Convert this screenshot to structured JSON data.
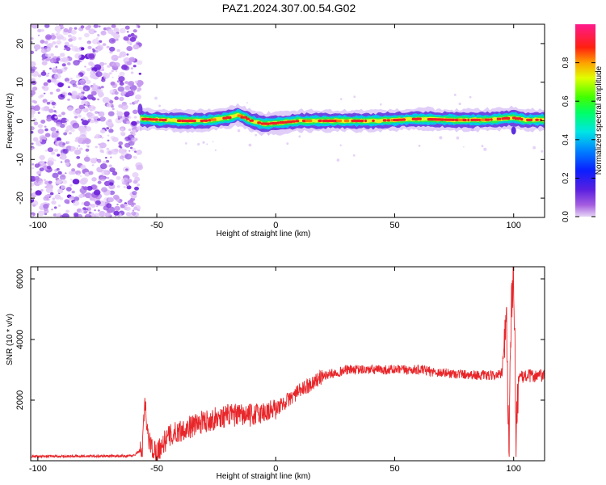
{
  "title": "PAZ1.2024.307.00.54.G02",
  "colors": {
    "snr_line": "#e8262a",
    "scatter_noise": "#8a2be2",
    "axis": "#000000"
  },
  "chart_data": [
    {
      "type": "heatmap",
      "title": "PAZ1.2024.307.00.54.G02",
      "xlabel": "Height of straight line (km)",
      "ylabel": "Frequency (Hz)",
      "xlim": [
        -103,
        113
      ],
      "ylim": [
        -25,
        25
      ],
      "xticks": [
        -100,
        -50,
        0,
        50,
        100
      ],
      "yticks": [
        -20,
        -10,
        0,
        10,
        20
      ],
      "colorbar": {
        "label": "Normalized spectral amplitude",
        "range": [
          0,
          1
        ],
        "ticks": [
          "0.0",
          "0.2",
          "0.4",
          "0.6",
          "0.8"
        ],
        "tick_values": [
          0,
          0.2,
          0.4,
          0.6,
          0.8
        ],
        "colormap": "rainbow (purple-blue-cyan-green-yellow-red-magenta)"
      },
      "noise_region_km": [
        -103,
        -57
      ],
      "signal_centerline": {
        "x": [
          -57,
          -50,
          -40,
          -30,
          -20,
          -16,
          -10,
          -5,
          0,
          5,
          10,
          20,
          30,
          40,
          50,
          60,
          70,
          80,
          90,
          100,
          105,
          113
        ],
        "freq": [
          0.5,
          0.3,
          0.0,
          0.0,
          0.8,
          1.6,
          0.0,
          -0.8,
          -0.6,
          -0.3,
          0.0,
          0.0,
          0.0,
          0.0,
          0.2,
          0.5,
          0.3,
          0.2,
          0.3,
          0.8,
          0.2,
          0.3
        ]
      }
    },
    {
      "type": "line",
      "xlabel": "Height of straight line (km)",
      "ylabel": "SNR (10 * v/v)",
      "xlim": [
        -103,
        113
      ],
      "ylim": [
        0,
        6400
      ],
      "xticks": [
        -100,
        -50,
        0,
        50,
        100
      ],
      "yticks": [
        2000,
        4000,
        6000
      ],
      "series_trend": {
        "x": [
          -103,
          -80,
          -60,
          -56,
          -55,
          -54,
          -52,
          -50,
          -45,
          -40,
          -30,
          -20,
          -10,
          0,
          10,
          20,
          30,
          40,
          50,
          60,
          70,
          80,
          90,
          95,
          97,
          98,
          99,
          100,
          101,
          102,
          105,
          113
        ],
        "y": [
          150,
          150,
          160,
          400,
          2000,
          900,
          400,
          300,
          800,
          1000,
          1300,
          1500,
          1500,
          1700,
          2300,
          2800,
          3000,
          3000,
          3000,
          3000,
          2900,
          2850,
          2800,
          2850,
          4500,
          500,
          4800,
          6300,
          1000,
          2700,
          2800,
          2800
        ]
      }
    }
  ]
}
